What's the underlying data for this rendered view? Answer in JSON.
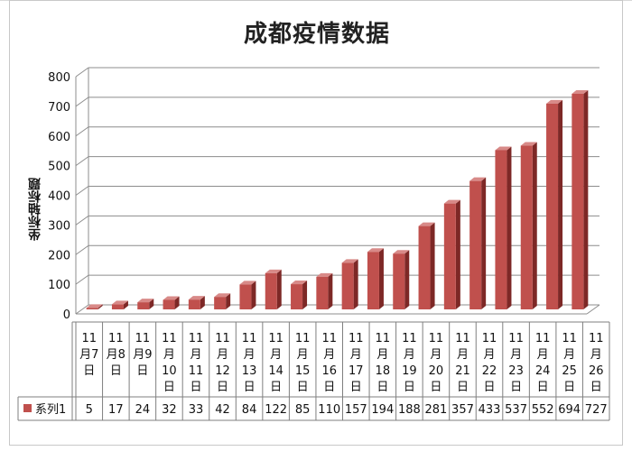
{
  "chart_data": {
    "type": "bar",
    "title": "成都疫情数据",
    "ylabel": "坐标轴标题",
    "xlabel": "",
    "ylim": [
      0,
      800
    ],
    "yticks": [
      0,
      100,
      200,
      300,
      400,
      500,
      600,
      700,
      800
    ],
    "grid": true,
    "style": "3d-column",
    "bar_color": "#c0504d",
    "data_table": true,
    "categories": [
      [
        "11",
        "月7",
        "日"
      ],
      [
        "11",
        "月8",
        "日"
      ],
      [
        "11",
        "月9",
        "日"
      ],
      [
        "11",
        "月",
        "10",
        "日"
      ],
      [
        "11",
        "月",
        "11",
        "日"
      ],
      [
        "11",
        "月",
        "12",
        "日"
      ],
      [
        "11",
        "月",
        "13",
        "日"
      ],
      [
        "11",
        "月",
        "14",
        "日"
      ],
      [
        "11",
        "月",
        "15",
        "日"
      ],
      [
        "11",
        "月",
        "16",
        "日"
      ],
      [
        "11",
        "月",
        "17",
        "日"
      ],
      [
        "11",
        "月",
        "18",
        "日"
      ],
      [
        "11",
        "月",
        "19",
        "日"
      ],
      [
        "11",
        "月",
        "20",
        "日"
      ],
      [
        "11",
        "月",
        "21",
        "日"
      ],
      [
        "11",
        "月",
        "22",
        "日"
      ],
      [
        "11",
        "月",
        "23",
        "日"
      ],
      [
        "11",
        "月",
        "24",
        "日"
      ],
      [
        "11",
        "月",
        "25",
        "日"
      ],
      [
        "11",
        "月",
        "26",
        "日"
      ]
    ],
    "series": [
      {
        "name": "系列1",
        "values": [
          5,
          17,
          24,
          32,
          33,
          42,
          84,
          122,
          85,
          110,
          157,
          194,
          188,
          281,
          357,
          433,
          537,
          552,
          694,
          727
        ]
      }
    ]
  }
}
